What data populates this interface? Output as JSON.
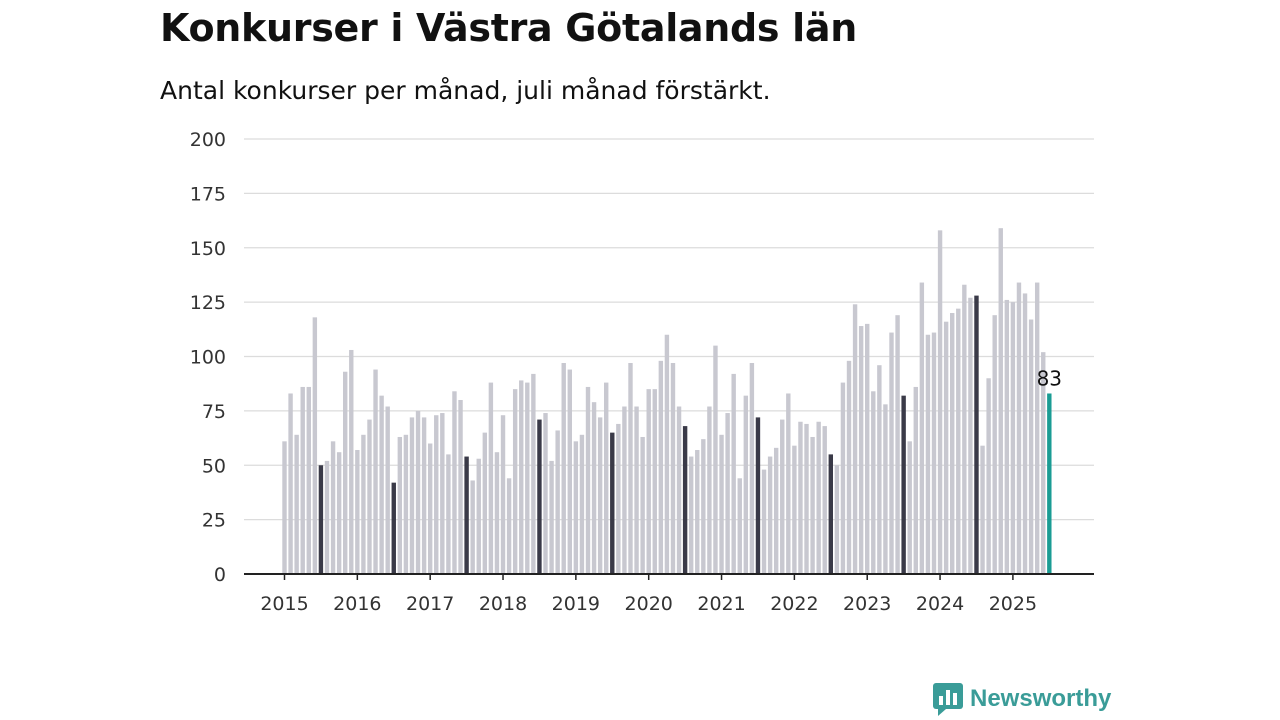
{
  "header": {
    "title": "Konkurser i Västra Götalands län",
    "subtitle": "Antal konkurser per månad, juli månad förstärkt."
  },
  "brand": {
    "name": "Newsworthy",
    "icon": "newsworthy-logo-icon",
    "color": "#3a9c98"
  },
  "chart_data": {
    "type": "bar",
    "start": "2015-01",
    "x_tick_labels": [
      "2015",
      "2016",
      "2017",
      "2018",
      "2019",
      "2020",
      "2021",
      "2022",
      "2023",
      "2024",
      "2025"
    ],
    "y_tick_labels": [
      "0",
      "25",
      "50",
      "75",
      "100",
      "125",
      "150",
      "175",
      "200"
    ],
    "ylim": [
      0,
      200
    ],
    "grid": true,
    "highlight_month": "juli",
    "colors": {
      "default": "#c8c8d0",
      "july": "#3a3a48",
      "latest": "#1a9c94"
    },
    "values": [
      61,
      83,
      64,
      86,
      86,
      118,
      50,
      52,
      61,
      56,
      93,
      103,
      57,
      64,
      71,
      94,
      82,
      77,
      42,
      63,
      64,
      72,
      75,
      72,
      60,
      73,
      74,
      55,
      84,
      80,
      54,
      43,
      53,
      65,
      88,
      56,
      73,
      44,
      85,
      89,
      88,
      92,
      71,
      74,
      52,
      66,
      97,
      94,
      61,
      64,
      86,
      79,
      72,
      88,
      65,
      69,
      77,
      97,
      77,
      63,
      85,
      85,
      98,
      110,
      97,
      77,
      68,
      54,
      57,
      62,
      77,
      105,
      64,
      74,
      92,
      44,
      82,
      97,
      72,
      48,
      54,
      58,
      71,
      83,
      59,
      70,
      69,
      63,
      70,
      68,
      55,
      50,
      88,
      98,
      124,
      114,
      115,
      84,
      96,
      78,
      111,
      119,
      82,
      61,
      86,
      134,
      110,
      111,
      158,
      116,
      120,
      122,
      133,
      127,
      128,
      59,
      90,
      119,
      159,
      126,
      125,
      134,
      129,
      117,
      134,
      102,
      83
    ],
    "latest_label": "83"
  }
}
